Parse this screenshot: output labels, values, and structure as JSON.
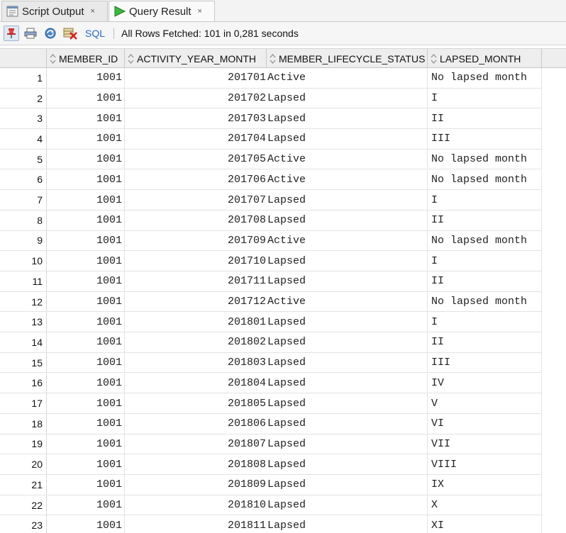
{
  "tabs": [
    {
      "label": "Script Output",
      "close": "×",
      "icon": "script-output-icon"
    },
    {
      "label": "Query Result",
      "close": "×",
      "icon": "run-query-icon"
    }
  ],
  "toolbar": {
    "sql_label": "SQL",
    "status": "All Rows Fetched: 101 in 0,281 seconds",
    "icons": [
      "pin-icon",
      "print-icon",
      "refresh-icon",
      "delete-icon"
    ]
  },
  "columns": [
    "MEMBER_ID",
    "ACTIVITY_YEAR_MONTH",
    "MEMBER_LIFECYCLE_STATUS",
    "LAPSED_MONTH"
  ],
  "rows": [
    {
      "n": "1",
      "id": "1001",
      "ym": "201701",
      "status": "Active",
      "lapsed": "No lapsed month"
    },
    {
      "n": "2",
      "id": "1001",
      "ym": "201702",
      "status": "Lapsed",
      "lapsed": "I"
    },
    {
      "n": "3",
      "id": "1001",
      "ym": "201703",
      "status": "Lapsed",
      "lapsed": "II"
    },
    {
      "n": "4",
      "id": "1001",
      "ym": "201704",
      "status": "Lapsed",
      "lapsed": "III"
    },
    {
      "n": "5",
      "id": "1001",
      "ym": "201705",
      "status": "Active",
      "lapsed": "No lapsed month"
    },
    {
      "n": "6",
      "id": "1001",
      "ym": "201706",
      "status": "Active",
      "lapsed": "No lapsed month"
    },
    {
      "n": "7",
      "id": "1001",
      "ym": "201707",
      "status": "Lapsed",
      "lapsed": "I"
    },
    {
      "n": "8",
      "id": "1001",
      "ym": "201708",
      "status": "Lapsed",
      "lapsed": "II"
    },
    {
      "n": "9",
      "id": "1001",
      "ym": "201709",
      "status": "Active",
      "lapsed": "No lapsed month"
    },
    {
      "n": "10",
      "id": "1001",
      "ym": "201710",
      "status": "Lapsed",
      "lapsed": "I"
    },
    {
      "n": "11",
      "id": "1001",
      "ym": "201711",
      "status": "Lapsed",
      "lapsed": "II"
    },
    {
      "n": "12",
      "id": "1001",
      "ym": "201712",
      "status": "Active",
      "lapsed": "No lapsed month"
    },
    {
      "n": "13",
      "id": "1001",
      "ym": "201801",
      "status": "Lapsed",
      "lapsed": "I"
    },
    {
      "n": "14",
      "id": "1001",
      "ym": "201802",
      "status": "Lapsed",
      "lapsed": "II"
    },
    {
      "n": "15",
      "id": "1001",
      "ym": "201803",
      "status": "Lapsed",
      "lapsed": "III"
    },
    {
      "n": "16",
      "id": "1001",
      "ym": "201804",
      "status": "Lapsed",
      "lapsed": "IV"
    },
    {
      "n": "17",
      "id": "1001",
      "ym": "201805",
      "status": "Lapsed",
      "lapsed": "V"
    },
    {
      "n": "18",
      "id": "1001",
      "ym": "201806",
      "status": "Lapsed",
      "lapsed": "VI"
    },
    {
      "n": "19",
      "id": "1001",
      "ym": "201807",
      "status": "Lapsed",
      "lapsed": "VII"
    },
    {
      "n": "20",
      "id": "1001",
      "ym": "201808",
      "status": "Lapsed",
      "lapsed": "VIII"
    },
    {
      "n": "21",
      "id": "1001",
      "ym": "201809",
      "status": "Lapsed",
      "lapsed": "IX"
    },
    {
      "n": "22",
      "id": "1001",
      "ym": "201810",
      "status": "Lapsed",
      "lapsed": "X"
    },
    {
      "n": "23",
      "id": "1001",
      "ym": "201811",
      "status": "Lapsed",
      "lapsed": "XI"
    }
  ],
  "colors": {
    "accent": "#2a6bbf",
    "run_green": "#2f9e2f",
    "header_bg": "#eeeeee"
  }
}
